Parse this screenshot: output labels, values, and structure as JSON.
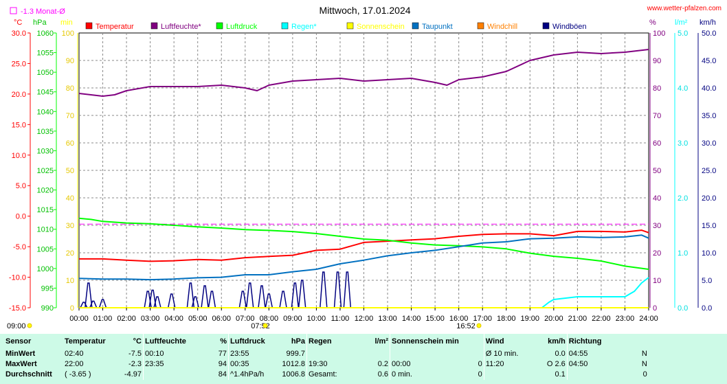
{
  "header": {
    "title": "Mittwoch, 17.01.2024",
    "site_link": "www.wetter-pfalzen.com",
    "month_avg_label": "-1.3 Monat-Ø"
  },
  "units": {
    "temp": "°C",
    "press": "hPa",
    "minutes": "min",
    "percent": "%",
    "rain": "l/m²",
    "wind": "km/h"
  },
  "legend": [
    {
      "name": "Temperatur",
      "color": "#ff0000"
    },
    {
      "name": "Luftfeuchte*",
      "color": "#800080"
    },
    {
      "name": "Luftdruck",
      "color": "#00ff00"
    },
    {
      "name": "Regen*",
      "color": "#00ffff"
    },
    {
      "name": "Sonnenschein",
      "color": "#ffff00"
    },
    {
      "name": "Taupunkt",
      "color": "#0070c0"
    },
    {
      "name": "Windchill",
      "color": "#ff8000"
    },
    {
      "name": "Windböen",
      "color": "#000080"
    }
  ],
  "axes": {
    "temp_ticks": [
      "30.0",
      "25.0",
      "20.0",
      "15.0",
      "10.0",
      "5.0",
      "0.0",
      "-5.0",
      "-10.0",
      "-15.0"
    ],
    "press_ticks": [
      "1060",
      "1055",
      "1050",
      "1045",
      "1040",
      "1035",
      "1030",
      "1025",
      "1020",
      "1015",
      "1010",
      "1005",
      "1000",
      "995",
      "990"
    ],
    "min_ticks": [
      "100",
      "90",
      "80",
      "70",
      "60",
      "50",
      "40",
      "30",
      "20",
      "10",
      "0"
    ],
    "pct_ticks": [
      "100",
      "90",
      "80",
      "70",
      "60",
      "50",
      "40",
      "30",
      "20",
      "10",
      "0"
    ],
    "rain_ticks": [
      "5.0",
      "4.0",
      "3.0",
      "2.0",
      "1.0",
      "0.0"
    ],
    "wind_ticks": [
      "50.0",
      "45.0",
      "40.0",
      "35.0",
      "30.0",
      "25.0",
      "20.0",
      "15.0",
      "10.0",
      "5.0",
      "0.0"
    ],
    "time_ticks": [
      "00:00",
      "01:00",
      "02:00",
      "03:00",
      "04:00",
      "05:00",
      "06:00",
      "07:00",
      "08:00",
      "09:00",
      "10:00",
      "11:00",
      "12:00",
      "13:00",
      "14:00",
      "15:00",
      "16:00",
      "17:00",
      "18:00",
      "19:00",
      "20:00",
      "21:00",
      "22:00",
      "23:00",
      "24:00"
    ]
  },
  "sun": {
    "sunrise": "07:52",
    "sunset": "16:52",
    "update_time": "09:00"
  },
  "chart_data": {
    "type": "line",
    "x_unit": "hour",
    "xlim": [
      0,
      24
    ],
    "month_avg_temp": -1.3,
    "series": [
      {
        "name": "Temperatur",
        "unit": "°C",
        "color": "#ff0000",
        "x": [
          0,
          1,
          2,
          3,
          4,
          5,
          6,
          7,
          8,
          9,
          10,
          11,
          12,
          13,
          14,
          15,
          16,
          17,
          18,
          19,
          20,
          21,
          22,
          23,
          23.7,
          24
        ],
        "y": [
          -7.0,
          -7.0,
          -7.2,
          -7.4,
          -7.3,
          -7.1,
          -7.2,
          -6.8,
          -6.6,
          -6.4,
          -5.6,
          -5.4,
          -4.3,
          -4.1,
          -3.9,
          -3.7,
          -3.3,
          -3.0,
          -2.9,
          -2.9,
          -3.2,
          -2.5,
          -2.5,
          -2.6,
          -2.3,
          -2.7
        ]
      },
      {
        "name": "Luftfeuchte*",
        "unit": "%",
        "color": "#800080",
        "x": [
          0,
          0.5,
          1,
          1.5,
          2,
          3,
          4,
          5,
          6,
          7,
          7.5,
          8,
          9,
          10,
          11,
          12,
          13,
          14,
          15,
          15.5,
          16,
          17,
          18,
          19,
          20,
          21,
          22,
          23,
          24
        ],
        "y": [
          78,
          77.5,
          77,
          77.5,
          79,
          80.5,
          80.5,
          80.5,
          81,
          80,
          79,
          81,
          82.5,
          83,
          83.5,
          82.5,
          83,
          83.5,
          82,
          81,
          83,
          84,
          86,
          90,
          92,
          93,
          92.5,
          93,
          94
        ]
      },
      {
        "name": "Luftdruck",
        "unit": "hPa",
        "color": "#00ff00",
        "x": [
          0,
          0.5,
          1,
          2,
          3,
          4,
          5,
          6,
          7,
          8,
          9,
          10,
          11,
          12,
          13,
          14,
          15,
          16,
          17,
          18,
          19,
          20,
          21,
          22,
          23,
          24
        ],
        "y": [
          1012.8,
          1012.5,
          1012,
          1011.6,
          1011.4,
          1011.0,
          1010.6,
          1010.3,
          1009.9,
          1009.7,
          1009.4,
          1008.9,
          1008.2,
          1007.5,
          1007.2,
          1006.5,
          1006.0,
          1005.8,
          1005.5,
          1005.0,
          1003.9,
          1003.1,
          1002.6,
          1001.9,
          1000.6,
          999.8
        ]
      },
      {
        "name": "Taupunkt",
        "unit": "°C",
        "color": "#0070c0",
        "x": [
          0,
          1,
          2,
          3,
          4,
          5,
          6,
          7,
          8,
          9,
          10,
          11,
          12,
          13,
          14,
          15,
          16,
          17,
          18,
          19,
          20,
          21,
          22,
          23,
          23.7,
          24
        ],
        "y": [
          -10.2,
          -10.3,
          -10.3,
          -10.4,
          -10.3,
          -10.1,
          -10.0,
          -9.6,
          -9.6,
          -9.1,
          -8.7,
          -7.8,
          -7.2,
          -6.5,
          -6.0,
          -5.6,
          -5.0,
          -4.4,
          -4.2,
          -3.7,
          -3.6,
          -3.4,
          -3.5,
          -3.4,
          -3.1,
          -3.6
        ]
      },
      {
        "name": "Regen*",
        "unit": "l/m²",
        "color": "#00ffff",
        "x": [
          0,
          19.5,
          19.8,
          20,
          21,
          22,
          23,
          23.4,
          23.7,
          24
        ],
        "y": [
          0,
          0,
          0.1,
          0.15,
          0.2,
          0.2,
          0.2,
          0.3,
          0.45,
          0.55
        ]
      },
      {
        "name": "Windböen",
        "unit": "km/h",
        "color": "#000080",
        "gusts": [
          [
            0.2,
            1.0
          ],
          [
            0.4,
            4.5
          ],
          [
            0.6,
            1.2
          ],
          [
            1.0,
            1.5
          ],
          [
            2.9,
            3.0
          ],
          [
            3.1,
            3.2
          ],
          [
            3.3,
            2.0
          ],
          [
            3.9,
            2.5
          ],
          [
            4.7,
            4.5
          ],
          [
            4.9,
            2.0
          ],
          [
            5.3,
            4.0
          ],
          [
            5.6,
            3.0
          ],
          [
            6.9,
            3.0
          ],
          [
            7.2,
            4.5
          ],
          [
            7.7,
            4.0
          ],
          [
            8.0,
            2.5
          ],
          [
            8.6,
            3.0
          ],
          [
            9.1,
            4.5
          ],
          [
            9.4,
            5.0
          ],
          [
            10.3,
            6.5
          ],
          [
            10.9,
            6.5
          ],
          [
            11.3,
            6.5
          ]
        ]
      },
      {
        "name": "Sonnenschein",
        "unit": "min",
        "color": "#ffff00",
        "x": [
          0,
          24
        ],
        "y": [
          0,
          0
        ]
      }
    ]
  },
  "stats": {
    "headers": {
      "sensor": "Sensor",
      "temp": "Temperatur",
      "temp_unit": "°C",
      "hum": "Luftfeuchte",
      "hum_unit": "%",
      "press": "Luftdruck",
      "press_unit": "hPa",
      "rain": "Regen",
      "rain_unit": "l/m²",
      "sun": "Sonnenschein min",
      "wind": "Wind",
      "wind_unit": "km/h",
      "dir": "Richtung"
    },
    "min": {
      "label": "MinWert",
      "temp_t": "02:40",
      "temp_v": "-7.5",
      "hum_t": "00:10",
      "hum_v": "77",
      "press_t": "23:55",
      "press_v": "999.7",
      "rain_t": "",
      "rain_v": "",
      "sun_t": "",
      "sun_v": "",
      "wind_t": "Ø 10 min.",
      "wind_v": "0.0",
      "dir_t": "04:55",
      "dir_v": "N"
    },
    "max": {
      "label": "MaxWert",
      "temp_t": "22:00",
      "temp_v": "-2.3",
      "hum_t": "23:35",
      "hum_v": "94",
      "press_t": "00:35",
      "press_v": "1012.8",
      "rain_t": "19:30",
      "rain_v": "0.2",
      "sun_t": "00:00",
      "sun_v": "0",
      "wind_t": "11:20",
      "wind_v": "O 2.6",
      "dir_t": "04:50",
      "dir_v": "N"
    },
    "avg": {
      "label": "Durchschnitt",
      "temp_t": "( -3.65 )",
      "temp_v": "-4.97",
      "hum_t": "",
      "hum_v": "84",
      "press_t": "^1.4hPa/h",
      "press_v": "1006.8",
      "rain_t": "Gesamt:",
      "rain_v": "0.6",
      "sun_t": "0 min.",
      "sun_v": "0",
      "wind_t": "",
      "wind_v": "0.1",
      "dir_t": "",
      "dir_v": "0"
    }
  }
}
